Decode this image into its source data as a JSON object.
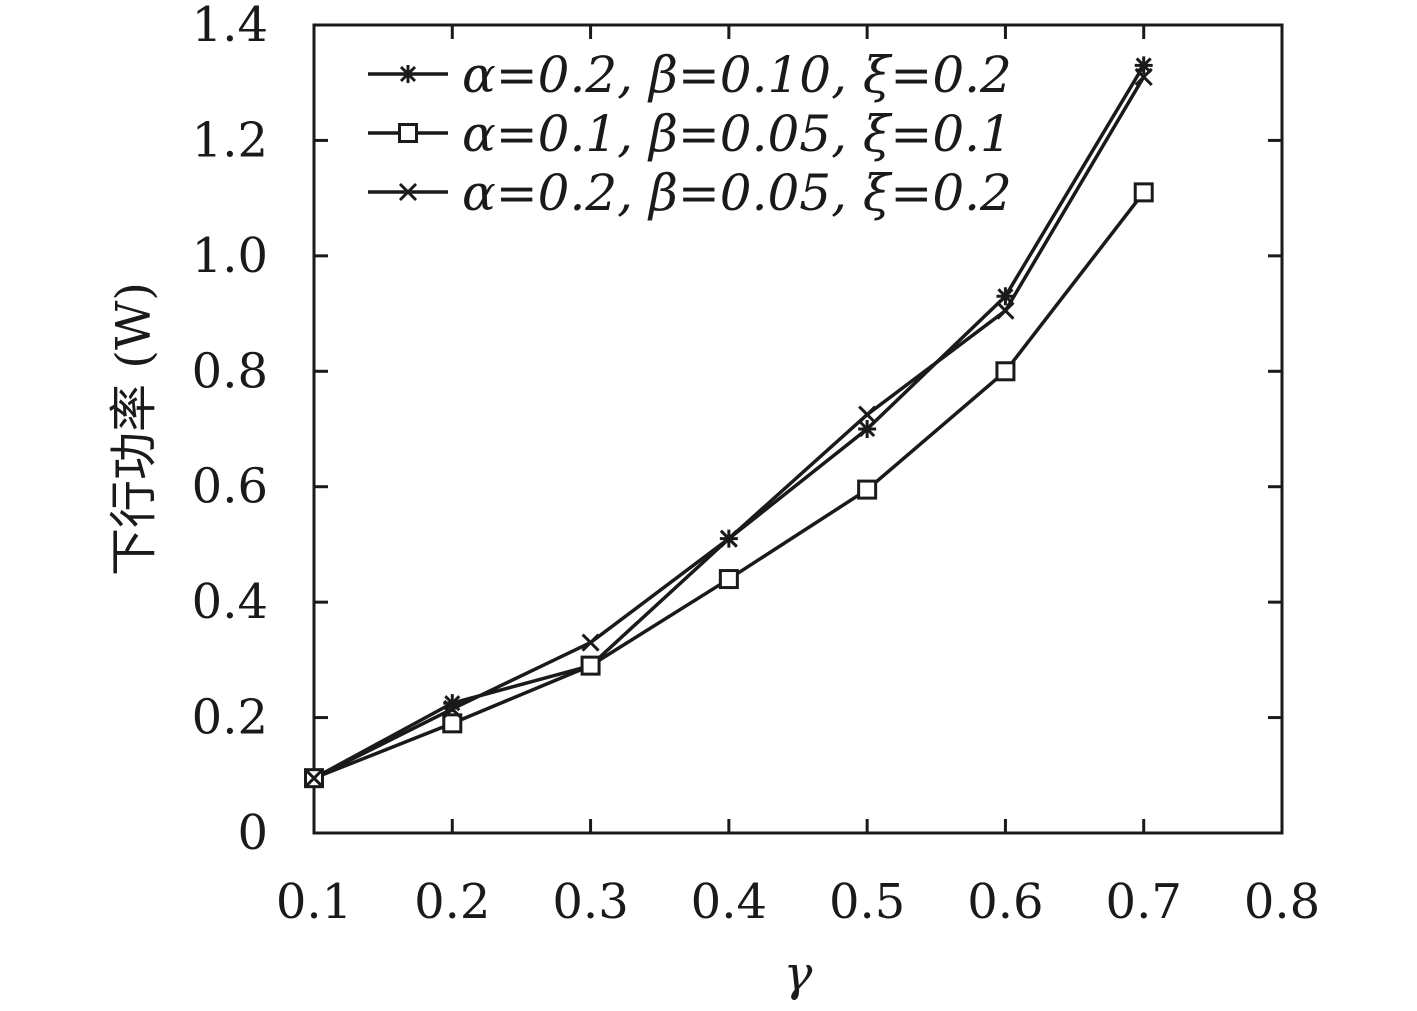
{
  "chart_data": {
    "type": "line",
    "title": "",
    "xlabel": "γ",
    "ylabel": "下行功率 (W)",
    "xlim": [
      0.1,
      0.8
    ],
    "ylim": [
      0,
      1.4
    ],
    "xticks": [
      0.1,
      0.2,
      0.3,
      0.4,
      0.5,
      0.6,
      0.7,
      0.8
    ],
    "xtick_labels": [
      "0.1",
      "0.2",
      "0.3",
      "0.4",
      "0.5",
      "0.6",
      "0.7",
      "0.8"
    ],
    "yticks": [
      0,
      0.2,
      0.4,
      0.6,
      0.8,
      1.0,
      1.2,
      1.4
    ],
    "ytick_labels": [
      "0",
      "0.2",
      "0.4",
      "0.6",
      "0.8",
      "1.0",
      "1.2",
      "1.4"
    ],
    "grid": false,
    "legend_position": "top-left",
    "x": [
      0.1,
      0.2,
      0.3,
      0.4,
      0.5,
      0.6,
      0.7
    ],
    "series": [
      {
        "name": "α=0.2, β=0.10, ξ=0.2",
        "marker": "asterisk",
        "color": "#1a1a1a",
        "values": [
          0.095,
          0.225,
          0.29,
          0.51,
          0.7,
          0.93,
          1.33
        ]
      },
      {
        "name": "α=0.1, β=0.05, ξ=0.1",
        "marker": "square",
        "color": "#1a1a1a",
        "values": [
          0.095,
          0.19,
          0.29,
          0.44,
          0.595,
          0.8,
          1.11
        ]
      },
      {
        "name": "α=0.2, β=0.05, ξ=0.2",
        "marker": "x",
        "color": "#1a1a1a",
        "values": [
          0.095,
          0.215,
          0.33,
          0.51,
          0.725,
          0.905,
          1.31
        ]
      }
    ]
  }
}
